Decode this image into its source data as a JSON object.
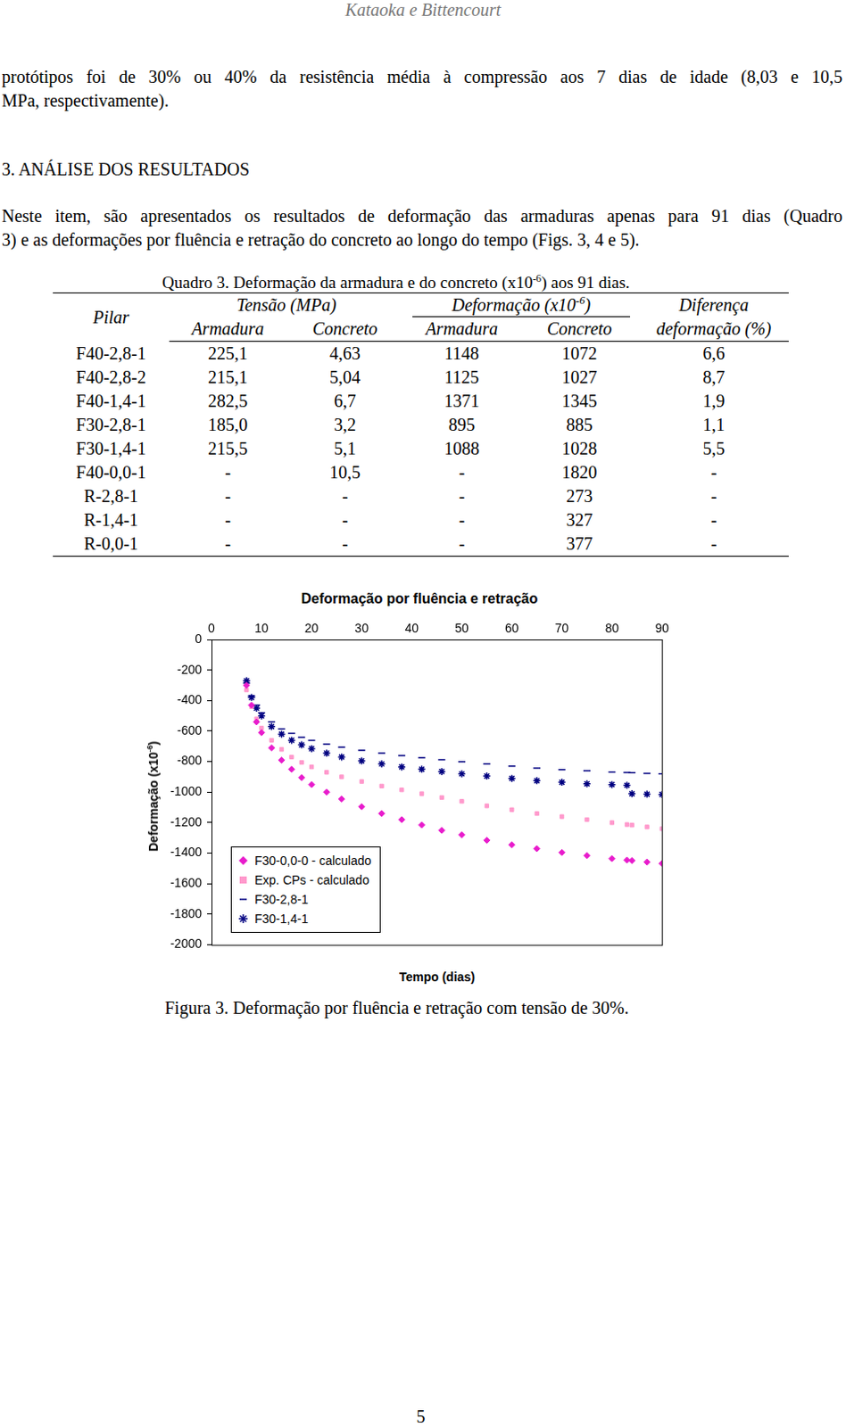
{
  "header": "Kataoka e Bittencourt",
  "intro_lines": [
    "protótipos foi de 30% ou 40% da resistência média à compressão aos 7 dias de idade (8,03 e 10,5",
    "MPa, respectivamente)."
  ],
  "section_title": "3. ANÁLISE DOS RESULTADOS",
  "text_lines": [
    "Neste item, são apresentados os resultados de deformação das armaduras apenas para 91 dias (Quadro",
    "3) e as deformações por fluência e retração do concreto ao longo do tempo (Figs. 3, 4 e 5)."
  ],
  "table": {
    "caption": [
      {
        "t": "Quadro 3. Deformação da armadura e do concreto (x10"
      },
      {
        "sup": "-6"
      },
      {
        "t": ") aos 91 dias."
      }
    ],
    "first_column": "Pilar",
    "groups": [
      {
        "title": [
          {
            "t": "Tensão (MPa)"
          }
        ],
        "columns": [
          "Armadura",
          "Concreto"
        ]
      },
      {
        "title": [
          {
            "t": "Deformação (x10"
          },
          {
            "sup": "-6"
          },
          {
            "t": ")"
          }
        ],
        "columns": [
          "Armadura",
          "Concreto"
        ]
      }
    ],
    "last_column": [
      "Diferença",
      "deformação (%)"
    ],
    "rows": [
      [
        "F40-2,8-1",
        "225,1",
        "4,63",
        "1148",
        "1072",
        "6,6"
      ],
      [
        "F40-2,8-2",
        "215,1",
        "5,04",
        "1125",
        "1027",
        "8,7"
      ],
      [
        "F40-1,4-1",
        "282,5",
        "6,7",
        "1371",
        "1345",
        "1,9"
      ],
      [
        "F30-2,8-1",
        "185,0",
        "3,2",
        "895",
        "885",
        "1,1"
      ],
      [
        "F30-1,4-1",
        "215,5",
        "5,1",
        "1088",
        "1028",
        "5,5"
      ],
      [
        "F40-0,0-1",
        "-",
        "10,5",
        "-",
        "1820",
        "-"
      ],
      [
        "R-2,8-1",
        "-",
        "-",
        "-",
        "273",
        "-"
      ],
      [
        "R-1,4-1",
        "-",
        "-",
        "-",
        "327",
        "-"
      ],
      [
        "R-0,0-1",
        "-",
        "-",
        "-",
        "377",
        "-"
      ]
    ]
  },
  "chart_data": {
    "type": "scatter",
    "title": "Deformação por fluência e retração",
    "x_label": "Tempo (dias)",
    "y_label": [
      {
        "t": "Deformação (x10"
      },
      {
        "sup": "-6"
      },
      {
        "t": ")"
      }
    ],
    "xlim": [
      0,
      90
    ],
    "xticks": [
      0,
      10,
      20,
      30,
      40,
      50,
      60,
      70,
      80,
      90
    ],
    "ylim": [
      -2000,
      0
    ],
    "yticks": [
      0,
      -200,
      -400,
      -600,
      -800,
      -1000,
      -1200,
      -1400,
      -1600,
      -1800,
      -2000
    ],
    "grid": false,
    "legend": "lower left",
    "x": [
      7,
      8,
      9,
      10,
      12,
      14,
      16,
      18,
      20,
      23,
      26,
      30,
      34,
      38,
      42,
      46,
      50,
      55,
      60,
      65,
      70,
      75,
      80,
      83,
      84,
      87,
      90
    ],
    "series": [
      {
        "name": "F30-0,0-0 - calculado",
        "color": "#e81ccc",
        "marker": "diamond",
        "values": [
          -300,
          -430,
          -540,
          -610,
          -710,
          -790,
          -850,
          -905,
          -950,
          -1000,
          -1045,
          -1095,
          -1140,
          -1180,
          -1215,
          -1250,
          -1280,
          -1315,
          -1345,
          -1370,
          -1395,
          -1415,
          -1435,
          -1445,
          -1448,
          -1458,
          -1467
        ]
      },
      {
        "name": "Exp. CPs - calculado",
        "color": "#ff99cc",
        "marker": "square",
        "values": [
          -330,
          -440,
          -520,
          -580,
          -660,
          -720,
          -770,
          -805,
          -835,
          -870,
          -900,
          -930,
          -960,
          -985,
          -1010,
          -1035,
          -1060,
          -1090,
          -1115,
          -1140,
          -1160,
          -1180,
          -1200,
          -1212,
          -1216,
          -1228,
          -1240
        ]
      },
      {
        "name": "F30-2,8-1",
        "color": "#000080",
        "marker": "dash",
        "values": [
          -285,
          -370,
          -430,
          -480,
          -540,
          -585,
          -615,
          -640,
          -660,
          -685,
          -705,
          -725,
          -745,
          -760,
          -775,
          -788,
          -800,
          -815,
          -830,
          -842,
          -852,
          -860,
          -868,
          -872,
          -873,
          -877,
          -880
        ]
      },
      {
        "name": "F30-1,4-1",
        "color": "#000080",
        "marker": "asterisk",
        "values": [
          -270,
          -380,
          -450,
          -500,
          -570,
          -620,
          -660,
          -690,
          -715,
          -745,
          -770,
          -795,
          -815,
          -835,
          -850,
          -865,
          -880,
          -895,
          -910,
          -925,
          -935,
          -945,
          -950,
          -955,
          -1010,
          -1013,
          -1015
        ]
      }
    ]
  },
  "figure_caption": "Figura 3. Deformação por fluência e retração com tensão de 30%.",
  "page_number": "5"
}
